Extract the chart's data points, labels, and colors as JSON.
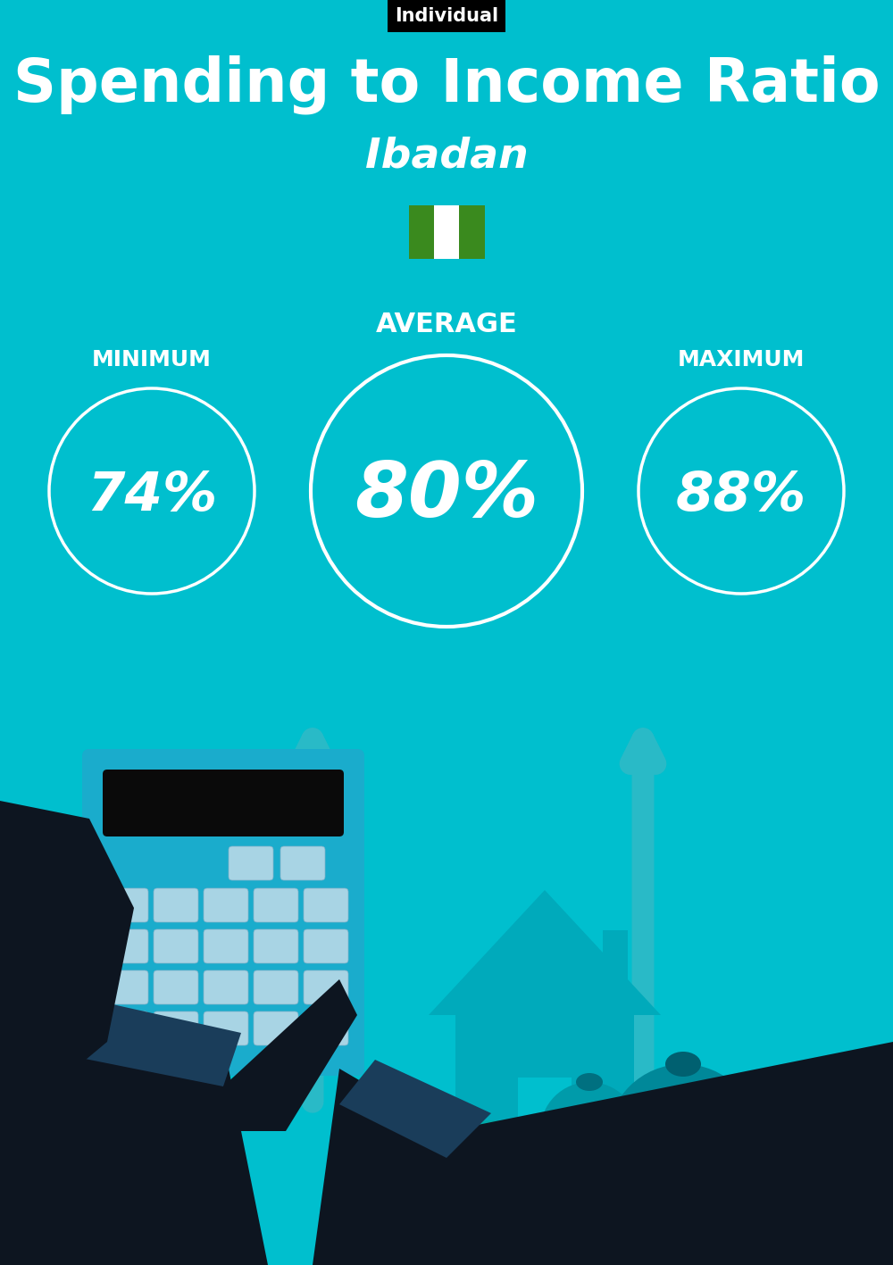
{
  "title": "Spending to Income Ratio",
  "subtitle": "Ibadan",
  "tag_label": "Individual",
  "bg_color": "#00BFCE",
  "tag_bg": "#000000",
  "tag_text_color": "#ffffff",
  "title_color": "#ffffff",
  "subtitle_color": "#ffffff",
  "min_label": "MINIMUM",
  "avg_label": "AVERAGE",
  "max_label": "MAXIMUM",
  "min_value": "74%",
  "avg_value": "80%",
  "max_value": "88%",
  "circle_color": "#ffffff",
  "circle_text_color": "#ffffff",
  "label_color": "#ffffff",
  "nigeria_flag_green": "#3a8a1e",
  "nigeria_flag_white": "#ffffff",
  "fig_width": 10.0,
  "fig_height": 14.17,
  "dpi": 100
}
